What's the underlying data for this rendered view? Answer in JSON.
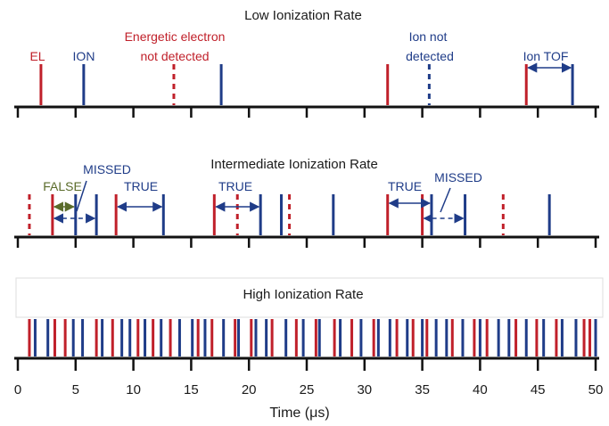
{
  "colors": {
    "electron": "#c0202a",
    "ion": "#1f3c88",
    "false_label": "#5a6b2a",
    "axis": "#111111"
  },
  "panels": {
    "low": {
      "title": "Low Ionization Rate",
      "labels": {
        "el": "EL",
        "ion": "ION",
        "electron_nd_1": "Energetic electron",
        "electron_nd_2": "not detected",
        "ion_nd_1": "Ion not",
        "ion_nd_2": "detected",
        "ion_tof": "Ion TOF"
      },
      "electron_solid": [
        2,
        32,
        44
      ],
      "electron_dashed": [
        13.5
      ],
      "ion_solid": [
        5.7,
        17.6,
        48
      ],
      "ion_dashed": [
        35.6
      ],
      "arrows": [
        {
          "from": 44,
          "to": 48,
          "style": "solid",
          "color": "ion"
        }
      ]
    },
    "intermediate": {
      "title": "Intermediate Ionization Rate",
      "labels": {
        "false": "FALSE",
        "missed_1": "MISSED",
        "true_1": "TRUE",
        "true_2": "TRUE",
        "true_3": "TRUE",
        "missed_2": "MISSED"
      },
      "electron_solid": [
        3,
        8.5,
        17,
        32,
        35
      ],
      "electron_dashed": [
        1,
        19,
        23.5,
        42
      ],
      "ion_solid": [
        5,
        6.8,
        12.6,
        21,
        22.8,
        27.3,
        35.8,
        38.7,
        46
      ],
      "arrows": [
        {
          "from": 3,
          "to": 5,
          "style": "solid",
          "color": "false"
        },
        {
          "from": 3,
          "to": 6.8,
          "style": "dashed",
          "color": "ion"
        },
        {
          "from": 8.5,
          "to": 12.6,
          "style": "solid",
          "color": "ion"
        },
        {
          "from": 17,
          "to": 21,
          "style": "solid",
          "color": "ion"
        },
        {
          "from": 32,
          "to": 35.8,
          "style": "solid",
          "color": "ion"
        },
        {
          "from": 35,
          "to": 38.7,
          "style": "dashed",
          "color": "ion"
        }
      ]
    },
    "high": {
      "title": "High Ionization Rate",
      "electron": [
        1.0,
        3.2,
        4.1,
        6.8,
        8.2,
        10.4,
        11.7,
        13.2,
        15.6,
        16.8,
        18.8,
        20.2,
        22.0,
        24.1,
        25.8,
        27.4,
        28.9,
        30.8,
        32.8,
        34.2,
        35.4,
        37.6,
        39.5,
        40.6,
        43.1,
        44.9,
        46.6,
        49.0,
        49.5
      ],
      "ion": [
        1.5,
        2.6,
        4.8,
        5.6,
        7.3,
        9.0,
        9.7,
        11.0,
        12.4,
        14.0,
        15.1,
        16.2,
        17.8,
        19.1,
        20.6,
        21.5,
        23.2,
        24.7,
        26.1,
        27.9,
        29.7,
        31.2,
        32.2,
        33.7,
        35.0,
        36.2,
        37.1,
        38.5,
        40.0,
        41.6,
        42.5,
        44.0,
        45.5,
        47.1,
        48.3,
        50.0
      ]
    }
  },
  "axis": {
    "min": 0,
    "max": 50,
    "major_ticks": [
      0,
      5,
      10,
      15,
      20,
      25,
      30,
      35,
      40,
      45,
      50
    ],
    "tick_labels": [
      "0",
      "5",
      "10",
      "15",
      "20",
      "25",
      "30",
      "35",
      "40",
      "45",
      "50"
    ],
    "xlabel": "Time (μs)"
  }
}
